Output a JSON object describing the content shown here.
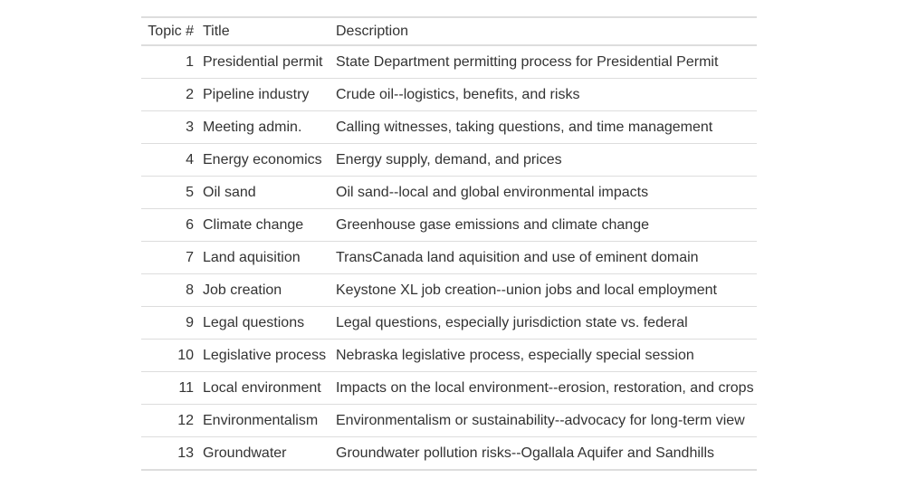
{
  "table": {
    "headers": {
      "topic": "Topic #",
      "title": "Title",
      "description": "Description"
    },
    "rows": [
      {
        "num": "1",
        "title": "Presidential permit",
        "description": "State Department permitting process for Presidential Permit"
      },
      {
        "num": "2",
        "title": "Pipeline industry",
        "description": "Crude oil--logistics, benefits, and risks"
      },
      {
        "num": "3",
        "title": "Meeting admin.",
        "description": "Calling witnesses, taking questions, and time management"
      },
      {
        "num": "4",
        "title": "Energy economics",
        "description": "Energy supply, demand, and prices"
      },
      {
        "num": "5",
        "title": "Oil sand",
        "description": "Oil sand--local and global environmental impacts"
      },
      {
        "num": "6",
        "title": "Climate change",
        "description": "Greenhouse gase emissions and climate change"
      },
      {
        "num": "7",
        "title": "Land aquisition",
        "description": "TransCanada land aquisition and use of eminent domain"
      },
      {
        "num": "8",
        "title": "Job creation",
        "description": "Keystone XL job creation--union jobs and local employment"
      },
      {
        "num": "9",
        "title": "Legal questions",
        "description": "Legal questions, especially jurisdiction state vs. federal"
      },
      {
        "num": "10",
        "title": "Legislative process",
        "description": "Nebraska legislative process, especially special session"
      },
      {
        "num": "11",
        "title": "Local environment",
        "description": "Impacts on the local environment--erosion, restoration, and crops"
      },
      {
        "num": "12",
        "title": "Environmentalism",
        "description": "Environmentalism or sustainability--advocacy for long-term view"
      },
      {
        "num": "13",
        "title": "Groundwater",
        "description": "Groundwater pollution risks--Ogallala Aquifer and Sandhills"
      }
    ]
  }
}
